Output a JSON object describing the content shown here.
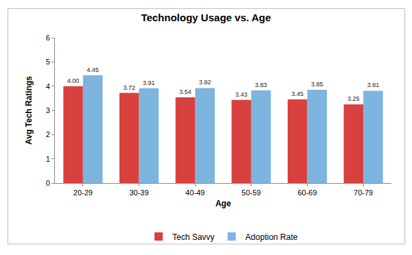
{
  "chart_data": {
    "type": "bar",
    "title": "Technology Usage vs. Age",
    "x_label": "Age",
    "y_label": "Avg Tech Ratings",
    "categories": [
      "20-29",
      "30-39",
      "40-49",
      "50-59",
      "60-69",
      "70-79"
    ],
    "series": [
      {
        "name": "Tech Savvy",
        "color": "#d9413f",
        "values": [
          4.0,
          3.72,
          3.54,
          3.43,
          3.45,
          3.25
        ],
        "value_labels": [
          "4.00",
          "3.72",
          "3.54",
          "3.43",
          "3.45",
          "3.25"
        ]
      },
      {
        "name": "Adoption Rate",
        "color": "#7db4e0",
        "values": [
          4.45,
          3.91,
          3.92,
          3.83,
          3.85,
          3.81
        ],
        "value_labels": [
          "4.45",
          "3.91",
          "3.92",
          "3.83",
          "3.85",
          "3.81"
        ]
      }
    ],
    "ylim": [
      0,
      6
    ],
    "yticks": [
      0,
      1,
      2,
      3,
      4,
      5,
      6
    ],
    "grid": false,
    "legend": "bottom",
    "data_labels": true
  }
}
